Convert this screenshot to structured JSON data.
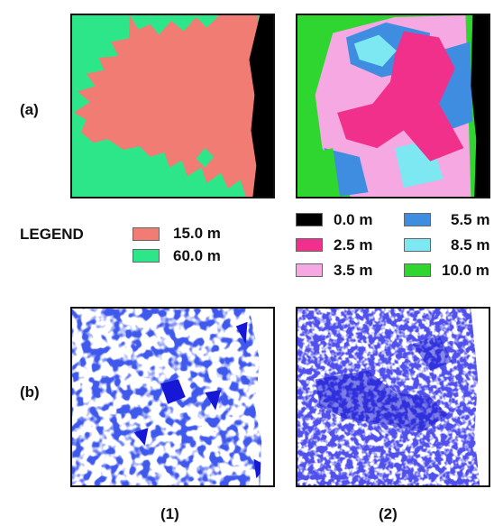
{
  "rows": [
    {
      "label": "(a)"
    },
    {
      "label": "(b)"
    }
  ],
  "columns": [
    {
      "label": "(1)"
    },
    {
      "label": "(2)"
    }
  ],
  "legend": {
    "title": "LEGEND",
    "left_items": [
      {
        "label": "15.0 m",
        "color": "#f07c73"
      },
      {
        "label": "60.0 m",
        "color": "#2ee68a"
      }
    ],
    "right_items": [
      {
        "label": "0.0 m",
        "color": "#000000"
      },
      {
        "label": "5.5 m",
        "color": "#3f8de0"
      },
      {
        "label": "2.5 m",
        "color": "#f0308a"
      },
      {
        "label": "8.5 m",
        "color": "#7de8f2"
      },
      {
        "label": "3.5 m",
        "color": "#f5a8e2"
      },
      {
        "label": "10.0 m",
        "color": "#2fd62f"
      }
    ]
  }
}
